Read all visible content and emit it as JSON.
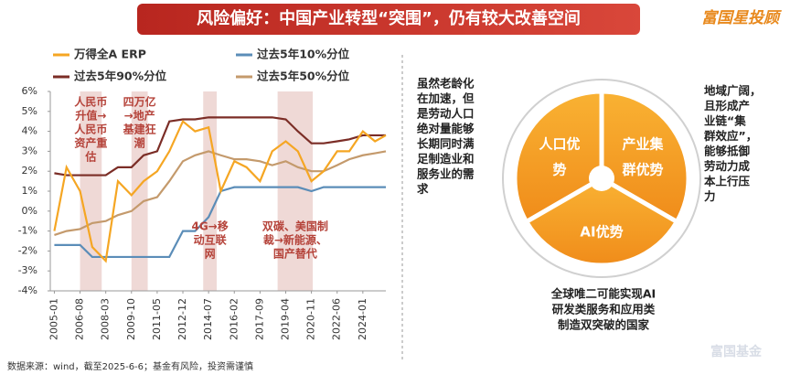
{
  "title": "风险偏好：中国产业转型“突围”，仍有较大改善空间",
  "logo": "富国星投顾",
  "watermark": "富国基金",
  "footer": "数据来源：wind，截至2025-6-6；基金有风险，投资需谨慎",
  "chart_data": {
    "type": "line",
    "x": [
      "2005-01",
      "2005-10",
      "2006-08",
      "2007-05",
      "2008-03",
      "2008-12",
      "2009-10",
      "2010-07",
      "2011-05",
      "2012-02",
      "2012-12",
      "2013-09",
      "2014-07",
      "2015-04",
      "2016-02",
      "2016-11",
      "2017-09",
      "2018-06",
      "2019-04",
      "2020-01",
      "2020-11",
      "2021-08",
      "2022-06",
      "2023-03",
      "2024-01",
      "2024-10",
      "2025-06"
    ],
    "xlim": [
      "2004-10",
      "2025-06"
    ],
    "xticks": [
      "2005-01",
      "2006-08",
      "2008-03",
      "2009-10",
      "2011-05",
      "2012-12",
      "2014-07",
      "2016-02",
      "2017-09",
      "2019-04",
      "2020-11",
      "2022-06",
      "2024-01"
    ],
    "ylim": [
      -4,
      6
    ],
    "yticks": [
      {
        "value": -4,
        "label": "-4%"
      },
      {
        "value": -3,
        "label": "-3%"
      },
      {
        "value": -2,
        "label": "-2%"
      },
      {
        "value": -1,
        "label": "-1%"
      },
      {
        "value": 0,
        "label": "0%"
      },
      {
        "value": 1,
        "label": "1%"
      },
      {
        "value": 2,
        "label": "2%"
      },
      {
        "value": 3,
        "label": "3%"
      },
      {
        "value": 4,
        "label": "4%"
      },
      {
        "value": 5,
        "label": "5%"
      },
      {
        "value": 6,
        "label": "6%"
      }
    ],
    "series": [
      {
        "name": "万得全A ERP",
        "color": "#f5a623",
        "values": [
          -1.0,
          2.2,
          1.0,
          -1.8,
          -2.5,
          1.5,
          0.8,
          1.5,
          2.0,
          3.0,
          4.5,
          4.0,
          4.2,
          1.0,
          2.5,
          2.2,
          1.5,
          3.0,
          3.5,
          3.0,
          1.5,
          2.0,
          3.0,
          3.0,
          4.0,
          3.5,
          3.8
        ]
      },
      {
        "name": "过去5年10%分位",
        "color": "#5b8db8",
        "values": [
          -1.7,
          -1.7,
          -1.7,
          -2.3,
          -2.3,
          -2.3,
          -2.3,
          -2.3,
          -2.3,
          -2.3,
          -1.0,
          -1.0,
          -0.3,
          1.0,
          1.2,
          1.2,
          1.2,
          1.2,
          1.2,
          1.2,
          1.0,
          1.2,
          1.2,
          1.2,
          1.2,
          1.2,
          1.2
        ]
      },
      {
        "name": "过去5年90%分位",
        "color": "#7b2d26",
        "values": [
          1.9,
          1.8,
          1.8,
          1.8,
          1.8,
          2.2,
          2.2,
          2.8,
          3.0,
          4.5,
          4.6,
          4.6,
          4.7,
          4.7,
          4.7,
          4.7,
          4.7,
          4.7,
          4.6,
          4.0,
          3.4,
          3.4,
          3.5,
          3.6,
          3.8,
          3.8,
          3.8
        ]
      },
      {
        "name": "过去5年50%分位",
        "color": "#c49a6c",
        "values": [
          -1.2,
          -1.0,
          -0.9,
          -0.6,
          -0.5,
          -0.2,
          0.0,
          0.5,
          0.7,
          1.5,
          2.5,
          2.8,
          3.0,
          2.8,
          2.6,
          2.6,
          2.5,
          2.3,
          2.5,
          2.2,
          2.0,
          2.0,
          2.3,
          2.6,
          2.8,
          2.9,
          3.0
        ]
      }
    ],
    "shaded_periods": [
      {
        "start": "2006-08",
        "end": "2007-12",
        "label": [
          "人民币",
          "升值→",
          "人民币",
          "资产重",
          "估"
        ]
      },
      {
        "start": "2009-10",
        "end": "2010-10",
        "label": [
          "四万亿",
          "→地产",
          "基建狂",
          "潮"
        ]
      },
      {
        "start": "2014-03",
        "end": "2015-01",
        "label": [
          "4G→移",
          "动互联",
          "网"
        ]
      },
      {
        "start": "2018-10",
        "end": "2020-12",
        "label": [
          "双碳、美国制",
          "裁→新能源、",
          "国产替代"
        ]
      }
    ]
  },
  "diagram": {
    "segments": [
      [
        "人口优",
        "势"
      ],
      [
        "产业集",
        "群优势"
      ],
      [
        "AI优势"
      ]
    ],
    "left_text": [
      "虽然老龄化",
      "在加速，但",
      "是劳动人口",
      "绝对量能够",
      "长期同时满",
      "足制造业和",
      "服务业的需",
      "求"
    ],
    "right_text": [
      "地域广阔，",
      "且形成产",
      "业链“集",
      "群效应”，",
      "能够抵御",
      "劳动力成",
      "本上行压",
      "力"
    ],
    "bottom_text": [
      "全球唯二可能实现AI",
      "研发类服务和应用类",
      "制造双突破的国家"
    ]
  }
}
